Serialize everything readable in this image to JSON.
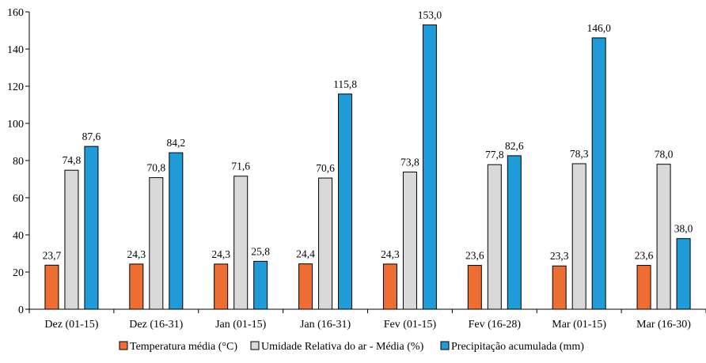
{
  "chart_data": {
    "type": "bar",
    "title": "",
    "xlabel": "",
    "ylabel": "",
    "ylim": [
      0,
      160
    ],
    "yticks": [
      0,
      20,
      40,
      60,
      80,
      100,
      120,
      140,
      160
    ],
    "grid": false,
    "legend_position": "bottom",
    "categories": [
      "Dez (01-15)",
      "Dez (16-31)",
      "Jan (01-15)",
      "Jan (16-31)",
      "Fev (01-15)",
      "Fev (16-28)",
      "Mar (01-15)",
      "Mar (16-30)"
    ],
    "series": [
      {
        "name": "Temperatura média (°C)",
        "color": "#ED6D32",
        "values": [
          23.7,
          24.3,
          24.3,
          24.4,
          24.3,
          23.6,
          23.3,
          23.6
        ],
        "labels": [
          "23,7",
          "24,3",
          "24,3",
          "24,4",
          "24,3",
          "23,6",
          "23,3",
          "23,6"
        ]
      },
      {
        "name": "Umidade Relativa do ar - Média  (%)",
        "color": "#D9D9D9",
        "values": [
          74.8,
          70.8,
          71.6,
          70.6,
          73.8,
          77.8,
          78.3,
          78.0
        ],
        "labels": [
          "74,8",
          "70,8",
          "71,6",
          "70,6",
          "73,8",
          "77,8",
          "78,3",
          "78,0"
        ]
      },
      {
        "name": "Precipitação acumulada (mm)",
        "color": "#1F9BD7",
        "values": [
          87.6,
          84.2,
          25.8,
          115.8,
          153.0,
          82.6,
          146.0,
          38.0
        ],
        "labels": [
          "87,6",
          "84,2",
          "25,8",
          "115,8",
          "153,0",
          "82,6",
          "146,0",
          "38,0"
        ]
      }
    ]
  }
}
